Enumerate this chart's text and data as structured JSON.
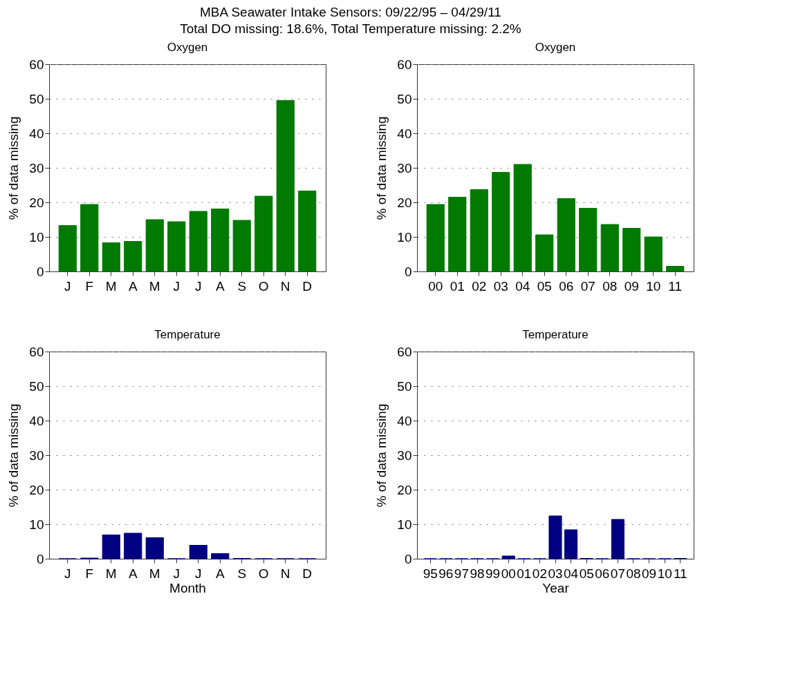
{
  "chart_data": [
    {
      "type": "bar",
      "title": "Oxygen",
      "ylabel": "% of data missing",
      "annotations": [
        "MBA Seawater Intake Sensors: 09/22/95 – 04/29/11",
        "Total DO missing: 18.6%, Total Temperature missing: 2.2%"
      ],
      "categories": [
        "J",
        "F",
        "M",
        "A",
        "M",
        "J",
        "J",
        "A",
        "S",
        "O",
        "N",
        "D"
      ],
      "series": [
        {
          "color": "#007a00",
          "values": [
            13.3,
            19.4,
            8.3,
            8.7,
            15,
            14.4,
            17.4,
            18.1,
            14.8,
            21.8,
            49.5,
            23.3
          ]
        }
      ],
      "ylim": [
        0,
        60
      ],
      "yticks": [
        0,
        10,
        20,
        30,
        40,
        50,
        60
      ],
      "grid": "y"
    },
    {
      "type": "bar",
      "title": "Oxygen",
      "ylabel": "% of data missing",
      "categories": [
        "00",
        "01",
        "02",
        "03",
        "04",
        "05",
        "06",
        "07",
        "08",
        "09",
        "10",
        "11"
      ],
      "series": [
        {
          "color": "#007a00",
          "values": [
            19.4,
            21.5,
            23.7,
            28.7,
            31,
            10.6,
            21.1,
            18.3,
            13.6,
            12.5,
            10,
            1.5
          ]
        }
      ],
      "ylim": [
        0,
        60
      ],
      "yticks": [
        0,
        10,
        20,
        30,
        40,
        50,
        60
      ],
      "grid": "y"
    },
    {
      "type": "bar",
      "title": "Temperature",
      "xlabel": "Month",
      "ylabel": "% of data missing",
      "categories": [
        "J",
        "F",
        "M",
        "A",
        "M",
        "J",
        "J",
        "A",
        "S",
        "O",
        "N",
        "D"
      ],
      "series": [
        {
          "color": "#000080",
          "values": [
            0,
            0.2,
            6.9,
            7.4,
            6.1,
            0,
            3.9,
            1.5,
            0.1,
            0,
            0,
            0
          ]
        }
      ],
      "ylim": [
        0,
        60
      ],
      "yticks": [
        0,
        10,
        20,
        30,
        40,
        50,
        60
      ],
      "grid": "y"
    },
    {
      "type": "bar",
      "title": "Temperature",
      "xlabel": "Year",
      "ylabel": "% of data missing",
      "categories": [
        "95",
        "96",
        "97",
        "98",
        "99",
        "00",
        "01",
        "02",
        "03",
        "04",
        "05",
        "06",
        "07",
        "08",
        "09",
        "10",
        "11"
      ],
      "series": [
        {
          "color": "#000080",
          "values": [
            0,
            0,
            0,
            0,
            0,
            0.8,
            0,
            0,
            12.4,
            8.4,
            0.1,
            0,
            11.4,
            0,
            0,
            0,
            0.1
          ]
        }
      ],
      "ylim": [
        0,
        60
      ],
      "yticks": [
        0,
        10,
        20,
        30,
        40,
        50,
        60
      ],
      "grid": "y"
    }
  ]
}
